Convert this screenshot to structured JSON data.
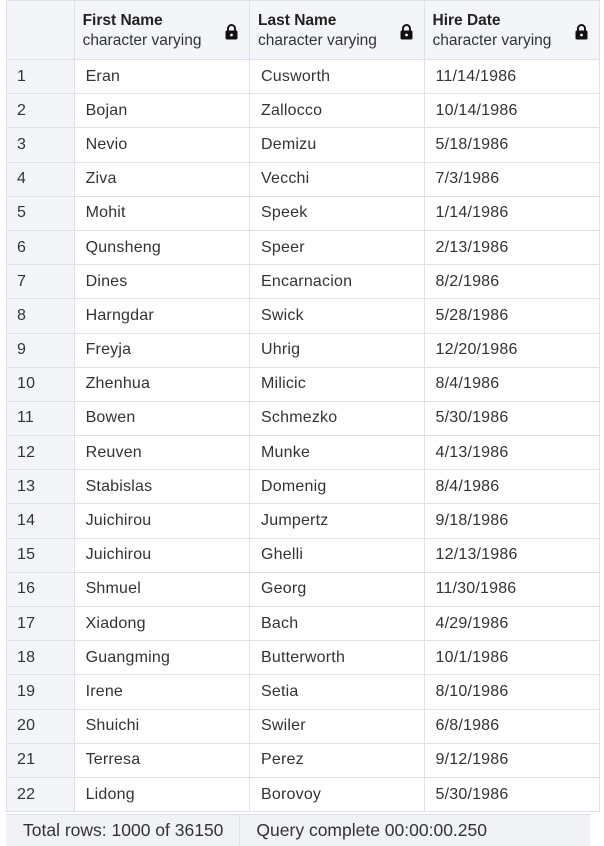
{
  "columns": [
    {
      "title": "First Name",
      "type": "character varying",
      "icon": "lock-icon"
    },
    {
      "title": "Last Name",
      "type": "character varying",
      "icon": "lock-icon"
    },
    {
      "title": "Hire Date",
      "type": "character varying",
      "icon": "lock-icon"
    }
  ],
  "rows": [
    [
      "1",
      "Eran",
      "Cusworth",
      "11/14/1986"
    ],
    [
      "2",
      "Bojan",
      "Zallocco",
      "10/14/1986"
    ],
    [
      "3",
      "Nevio",
      "Demizu",
      "5/18/1986"
    ],
    [
      "4",
      "Ziva",
      "Vecchi",
      "7/3/1986"
    ],
    [
      "5",
      "Mohit",
      "Speek",
      "1/14/1986"
    ],
    [
      "6",
      "Qunsheng",
      "Speer",
      "2/13/1986"
    ],
    [
      "7",
      "Dines",
      "Encarnacion",
      "8/2/1986"
    ],
    [
      "8",
      "Harngdar",
      "Swick",
      "5/28/1986"
    ],
    [
      "9",
      "Freyja",
      "Uhrig",
      "12/20/1986"
    ],
    [
      "10",
      "Zhenhua",
      "Milicic",
      "8/4/1986"
    ],
    [
      "11",
      "Bowen",
      "Schmezko",
      "5/30/1986"
    ],
    [
      "12",
      "Reuven",
      "Munke",
      "4/13/1986"
    ],
    [
      "13",
      "Stabislas",
      "Domenig",
      "8/4/1986"
    ],
    [
      "14",
      "Juichirou",
      "Jumpertz",
      "9/18/1986"
    ],
    [
      "15",
      "Juichirou",
      "Ghelli",
      "12/13/1986"
    ],
    [
      "16",
      "Shmuel",
      "Georg",
      "11/30/1986"
    ],
    [
      "17",
      "Xiadong",
      "Bach",
      "4/29/1986"
    ],
    [
      "18",
      "Guangming",
      "Butterworth",
      "10/1/1986"
    ],
    [
      "19",
      "Irene",
      "Setia",
      "8/10/1986"
    ],
    [
      "20",
      "Shuichi",
      "Swiler",
      "6/8/1986"
    ],
    [
      "21",
      "Terresa",
      "Perez",
      "9/12/1986"
    ],
    [
      "22",
      "Lidong",
      "Borovoy",
      "5/30/1986"
    ]
  ],
  "status": {
    "total_rows": "Total rows: 1000 of 36150",
    "query": "Query complete 00:00:00.250"
  }
}
